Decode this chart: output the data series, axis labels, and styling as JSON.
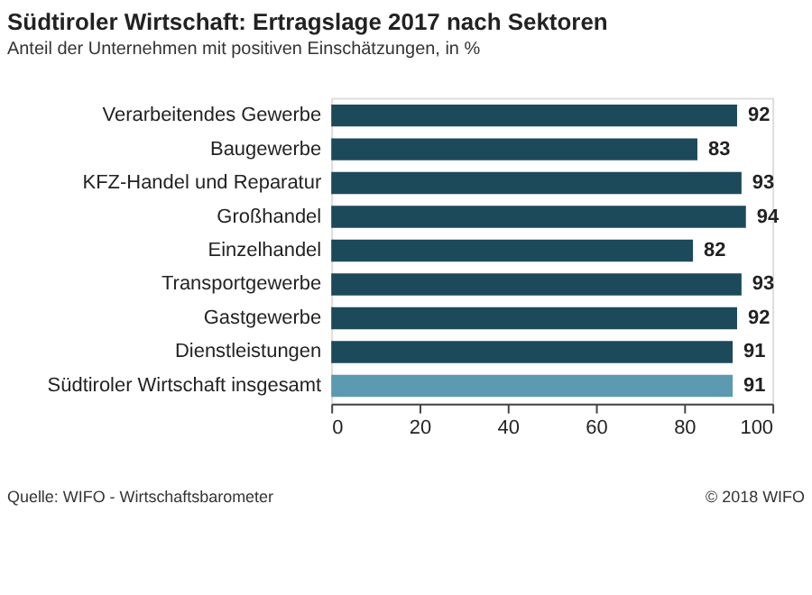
{
  "chart_data": {
    "type": "bar",
    "orientation": "horizontal",
    "title": "Südtiroler Wirtschaft: Ertragslage 2017 nach Sektoren",
    "subtitle": "Anteil der Unternehmen mit positiven Einschätzungen, in %",
    "categories": [
      "Verarbeitendes Gewerbe",
      "Baugewerbe",
      "KFZ-Handel und Reparatur",
      "Großhandel",
      "Einzelhandel",
      "Transportgewerbe",
      "Gastgewerbe",
      "Dienstleistungen",
      "Südtiroler Wirtschaft insgesamt"
    ],
    "values": [
      92,
      83,
      93,
      94,
      82,
      93,
      92,
      91,
      91
    ],
    "colors": [
      "#1d4a5a",
      "#1d4a5a",
      "#1d4a5a",
      "#1d4a5a",
      "#1d4a5a",
      "#1d4a5a",
      "#1d4a5a",
      "#1d4a5a",
      "#5b9ab0"
    ],
    "xlim": [
      0,
      100
    ],
    "xticks": [
      0,
      20,
      40,
      60,
      80,
      100
    ],
    "grid": false,
    "data_labels": true,
    "annotations": [
      "Quelle: WIFO - Wirtschaftsbarometer",
      "© 2018 WIFO"
    ]
  }
}
